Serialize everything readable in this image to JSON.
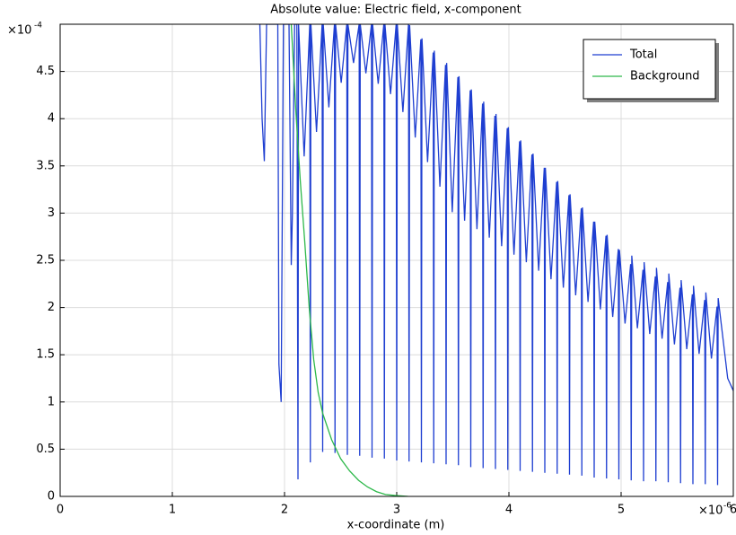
{
  "chart_data": {
    "type": "line",
    "title": "Absolute value: Electric field, x-component",
    "x_label": "x-coordinate (m)",
    "x_multiplier": {
      "base": "×10",
      "exponent": "-6"
    },
    "y_multiplier": {
      "base": "×10",
      "exponent": "-4"
    },
    "xlim": [
      0,
      6
    ],
    "ylim": [
      0,
      5
    ],
    "xticks": [
      0,
      1,
      2,
      3,
      4,
      5,
      6
    ],
    "yticks": [
      0,
      0.5,
      1,
      1.5,
      2,
      2.5,
      3,
      3.5,
      4,
      4.5
    ],
    "grid": true,
    "legend": "upper right",
    "series": [
      {
        "name": "Total",
        "color": "#1f3fd1",
        "x": [
          1.78,
          1.8,
          1.82,
          1.84,
          1.94,
          1.95,
          1.97,
          1.99,
          2.04,
          2.06,
          2.07,
          2.09,
          2.11,
          2.12,
          2.125,
          2.175,
          2.225,
          2.23,
          2.235,
          2.285,
          2.335,
          2.34,
          2.345,
          2.395,
          2.445,
          2.45,
          2.455,
          2.505,
          2.555,
          2.56,
          2.565,
          2.615,
          2.665,
          2.67,
          2.675,
          2.725,
          2.775,
          2.78,
          2.785,
          2.835,
          2.885,
          2.89,
          2.895,
          2.945,
          2.995,
          3.0,
          3.005,
          3.055,
          3.105,
          3.11,
          3.115,
          3.165,
          3.215,
          3.22,
          3.225,
          3.275,
          3.325,
          3.33,
          3.335,
          3.385,
          3.435,
          3.44,
          3.445,
          3.495,
          3.545,
          3.55,
          3.555,
          3.605,
          3.655,
          3.66,
          3.665,
          3.715,
          3.765,
          3.77,
          3.775,
          3.825,
          3.875,
          3.88,
          3.885,
          3.935,
          3.985,
          3.99,
          3.995,
          4.045,
          4.095,
          4.1,
          4.105,
          4.155,
          4.205,
          4.21,
          4.215,
          4.265,
          4.315,
          4.32,
          4.325,
          4.375,
          4.425,
          4.43,
          4.435,
          4.485,
          4.535,
          4.54,
          4.545,
          4.595,
          4.645,
          4.65,
          4.655,
          4.705,
          4.755,
          4.76,
          4.765,
          4.815,
          4.865,
          4.87,
          4.875,
          4.925,
          4.975,
          4.98,
          4.985,
          5.035,
          5.085,
          5.09,
          5.095,
          5.145,
          5.195,
          5.2,
          5.205,
          5.255,
          5.305,
          5.31,
          5.315,
          5.365,
          5.415,
          5.42,
          5.425,
          5.475,
          5.525,
          5.53,
          5.535,
          5.585,
          5.635,
          5.64,
          5.645,
          5.695,
          5.745,
          5.75,
          5.755,
          5.805,
          5.855,
          5.86,
          5.865,
          5.95,
          6.0
        ],
        "values": [
          5,
          4.0,
          3.55,
          5,
          5,
          1.4,
          1.0,
          5,
          5,
          2.45,
          2.98,
          5,
          5,
          0.18,
          5,
          3.6,
          5,
          0.36,
          5,
          3.86,
          5,
          0.47,
          5,
          4.12,
          5,
          0.46,
          5,
          4.38,
          5,
          0.44,
          5,
          4.59,
          5,
          0.43,
          5,
          4.48,
          5,
          0.41,
          5,
          4.37,
          5,
          0.4,
          5,
          4.26,
          5,
          0.38,
          5,
          4.07,
          5,
          0.37,
          4.99,
          3.8,
          4.84,
          0.36,
          4.85,
          3.54,
          4.7,
          0.35,
          4.72,
          3.28,
          4.57,
          0.34,
          4.59,
          3.01,
          4.44,
          0.33,
          4.45,
          2.92,
          4.3,
          0.31,
          4.31,
          2.83,
          4.16,
          0.3,
          4.18,
          2.74,
          4.03,
          0.29,
          4.05,
          2.65,
          3.9,
          0.28,
          3.91,
          2.56,
          3.76,
          0.27,
          3.77,
          2.48,
          3.62,
          0.26,
          3.63,
          2.39,
          3.48,
          0.25,
          3.48,
          2.3,
          3.33,
          0.24,
          3.34,
          2.21,
          3.19,
          0.23,
          3.2,
          2.13,
          3.05,
          0.22,
          3.06,
          2.06,
          2.91,
          0.2,
          2.91,
          1.98,
          2.76,
          0.19,
          2.77,
          1.9,
          2.62,
          0.18,
          2.61,
          1.83,
          2.46,
          0.17,
          2.55,
          1.78,
          2.4,
          0.16,
          2.48,
          1.72,
          2.33,
          0.16,
          2.42,
          1.67,
          2.27,
          0.15,
          2.36,
          1.61,
          2.21,
          0.14,
          2.29,
          1.56,
          2.14,
          0.13,
          2.23,
          1.51,
          2.08,
          0.13,
          2.16,
          1.46,
          2.01,
          0.12,
          2.1,
          1.25,
          1.12
        ]
      },
      {
        "name": "Background",
        "color": "#2db84a",
        "x": [
          2.06,
          2.1,
          2.14,
          2.18,
          2.22,
          2.26,
          2.3,
          2.34,
          2.42,
          2.5,
          2.58,
          2.66,
          2.74,
          2.82,
          2.9,
          2.98,
          3.1
        ],
        "values": [
          5,
          4.1,
          3.35,
          2.7,
          2.0,
          1.45,
          1.1,
          0.88,
          0.6,
          0.4,
          0.27,
          0.17,
          0.1,
          0.05,
          0.02,
          0.01,
          0
        ]
      }
    ]
  }
}
